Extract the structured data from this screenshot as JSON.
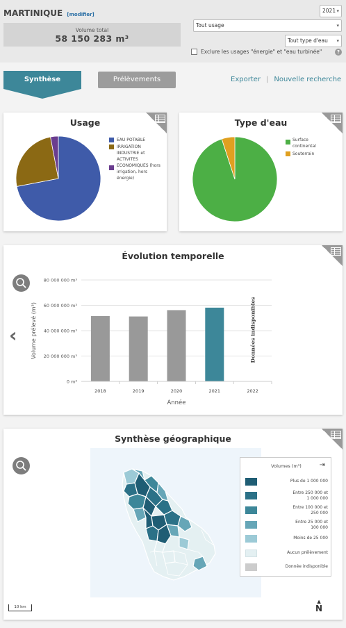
{
  "header": {
    "region": "MARTINIQUE",
    "modify": "[modifier]",
    "total_label": "Volume total",
    "total_value": "58 150 283 m³",
    "year_select": "2021",
    "usage_select": "Tout usage",
    "water_select": "Tout type d'eau",
    "exclude_label": "Exclure les usages \"énergie\" et \"eau turbinée\"",
    "help": "?"
  },
  "tabs": {
    "synthese": "Synthèse",
    "prelevements": "Prélèvements"
  },
  "links": {
    "export": "Exporter",
    "separator": "|",
    "new_search": "Nouvelle recherche"
  },
  "usage_card": {
    "title": "Usage",
    "legend": [
      {
        "label": "EAU POTABLE",
        "color": "#3f5ba9"
      },
      {
        "label": "IRRIGATION",
        "color": "#8b6914"
      },
      {
        "label": "INDUSTRIE et ACTIVITES ECONOMIQUES (hors irrigation, hors énergie)",
        "color": "#6a3d8f"
      }
    ]
  },
  "water_card": {
    "title": "Type d'eau",
    "legend": [
      {
        "label": "Surface continental",
        "color": "#4caf45"
      },
      {
        "label": "Souterrain",
        "color": "#e0a020"
      }
    ]
  },
  "evolution_card": {
    "title": "Évolution temporelle",
    "no_data": "Données indisponibles"
  },
  "geo_card": {
    "title": "Synthèse géographique",
    "legend_title": "Volumes (m³)",
    "legend": [
      {
        "label": "Plus de 1 000 000",
        "color": "#1f5d74"
      },
      {
        "label": "Entre 250 000 et 1 000 000",
        "color": "#2b7187"
      },
      {
        "label": "Entre 100 000 et 250 000",
        "color": "#3d8799"
      },
      {
        "label": "Entre 25 000 et 100 000",
        "color": "#66a6b7"
      },
      {
        "label": "Moins de 25 000",
        "color": "#9ccad6"
      },
      {
        "label": "Aucun prélèvement",
        "color": "#e4f0f2"
      },
      {
        "label": "Donnée indisponible",
        "color": "#cccccc"
      }
    ],
    "scale": "10 km",
    "north": "N"
  },
  "chart_data": [
    {
      "type": "pie",
      "title": "Usage",
      "categories": [
        "EAU POTABLE",
        "IRRIGATION",
        "INDUSTRIE et ACTIVITES ECONOMIQUES (hors irrigation, hors énergie)"
      ],
      "values": [
        72,
        25,
        3
      ],
      "colors": [
        "#3f5ba9",
        "#8b6914",
        "#6a3d8f"
      ]
    },
    {
      "type": "pie",
      "title": "Type d'eau",
      "categories": [
        "Surface continental",
        "Souterrain"
      ],
      "values": [
        95,
        5
      ],
      "colors": [
        "#4caf45",
        "#e0a020"
      ]
    },
    {
      "type": "bar",
      "title": "Évolution temporelle",
      "categories": [
        "2018",
        "2019",
        "2020",
        "2021",
        "2022"
      ],
      "values": [
        51500000,
        51200000,
        56200000,
        58150283,
        null
      ],
      "colors": [
        "#999999",
        "#999999",
        "#999999",
        "#3d8799",
        "#999999"
      ],
      "xlabel": "Année",
      "ylabel": "Volume prélevé (m³)",
      "yticks": [
        "0 m³",
        "20 000 000 m³",
        "40 000 000 m³",
        "60 000 000 m³",
        "80 000 000 m³"
      ],
      "ylim": [
        0,
        80000000
      ],
      "grid": true
    }
  ]
}
